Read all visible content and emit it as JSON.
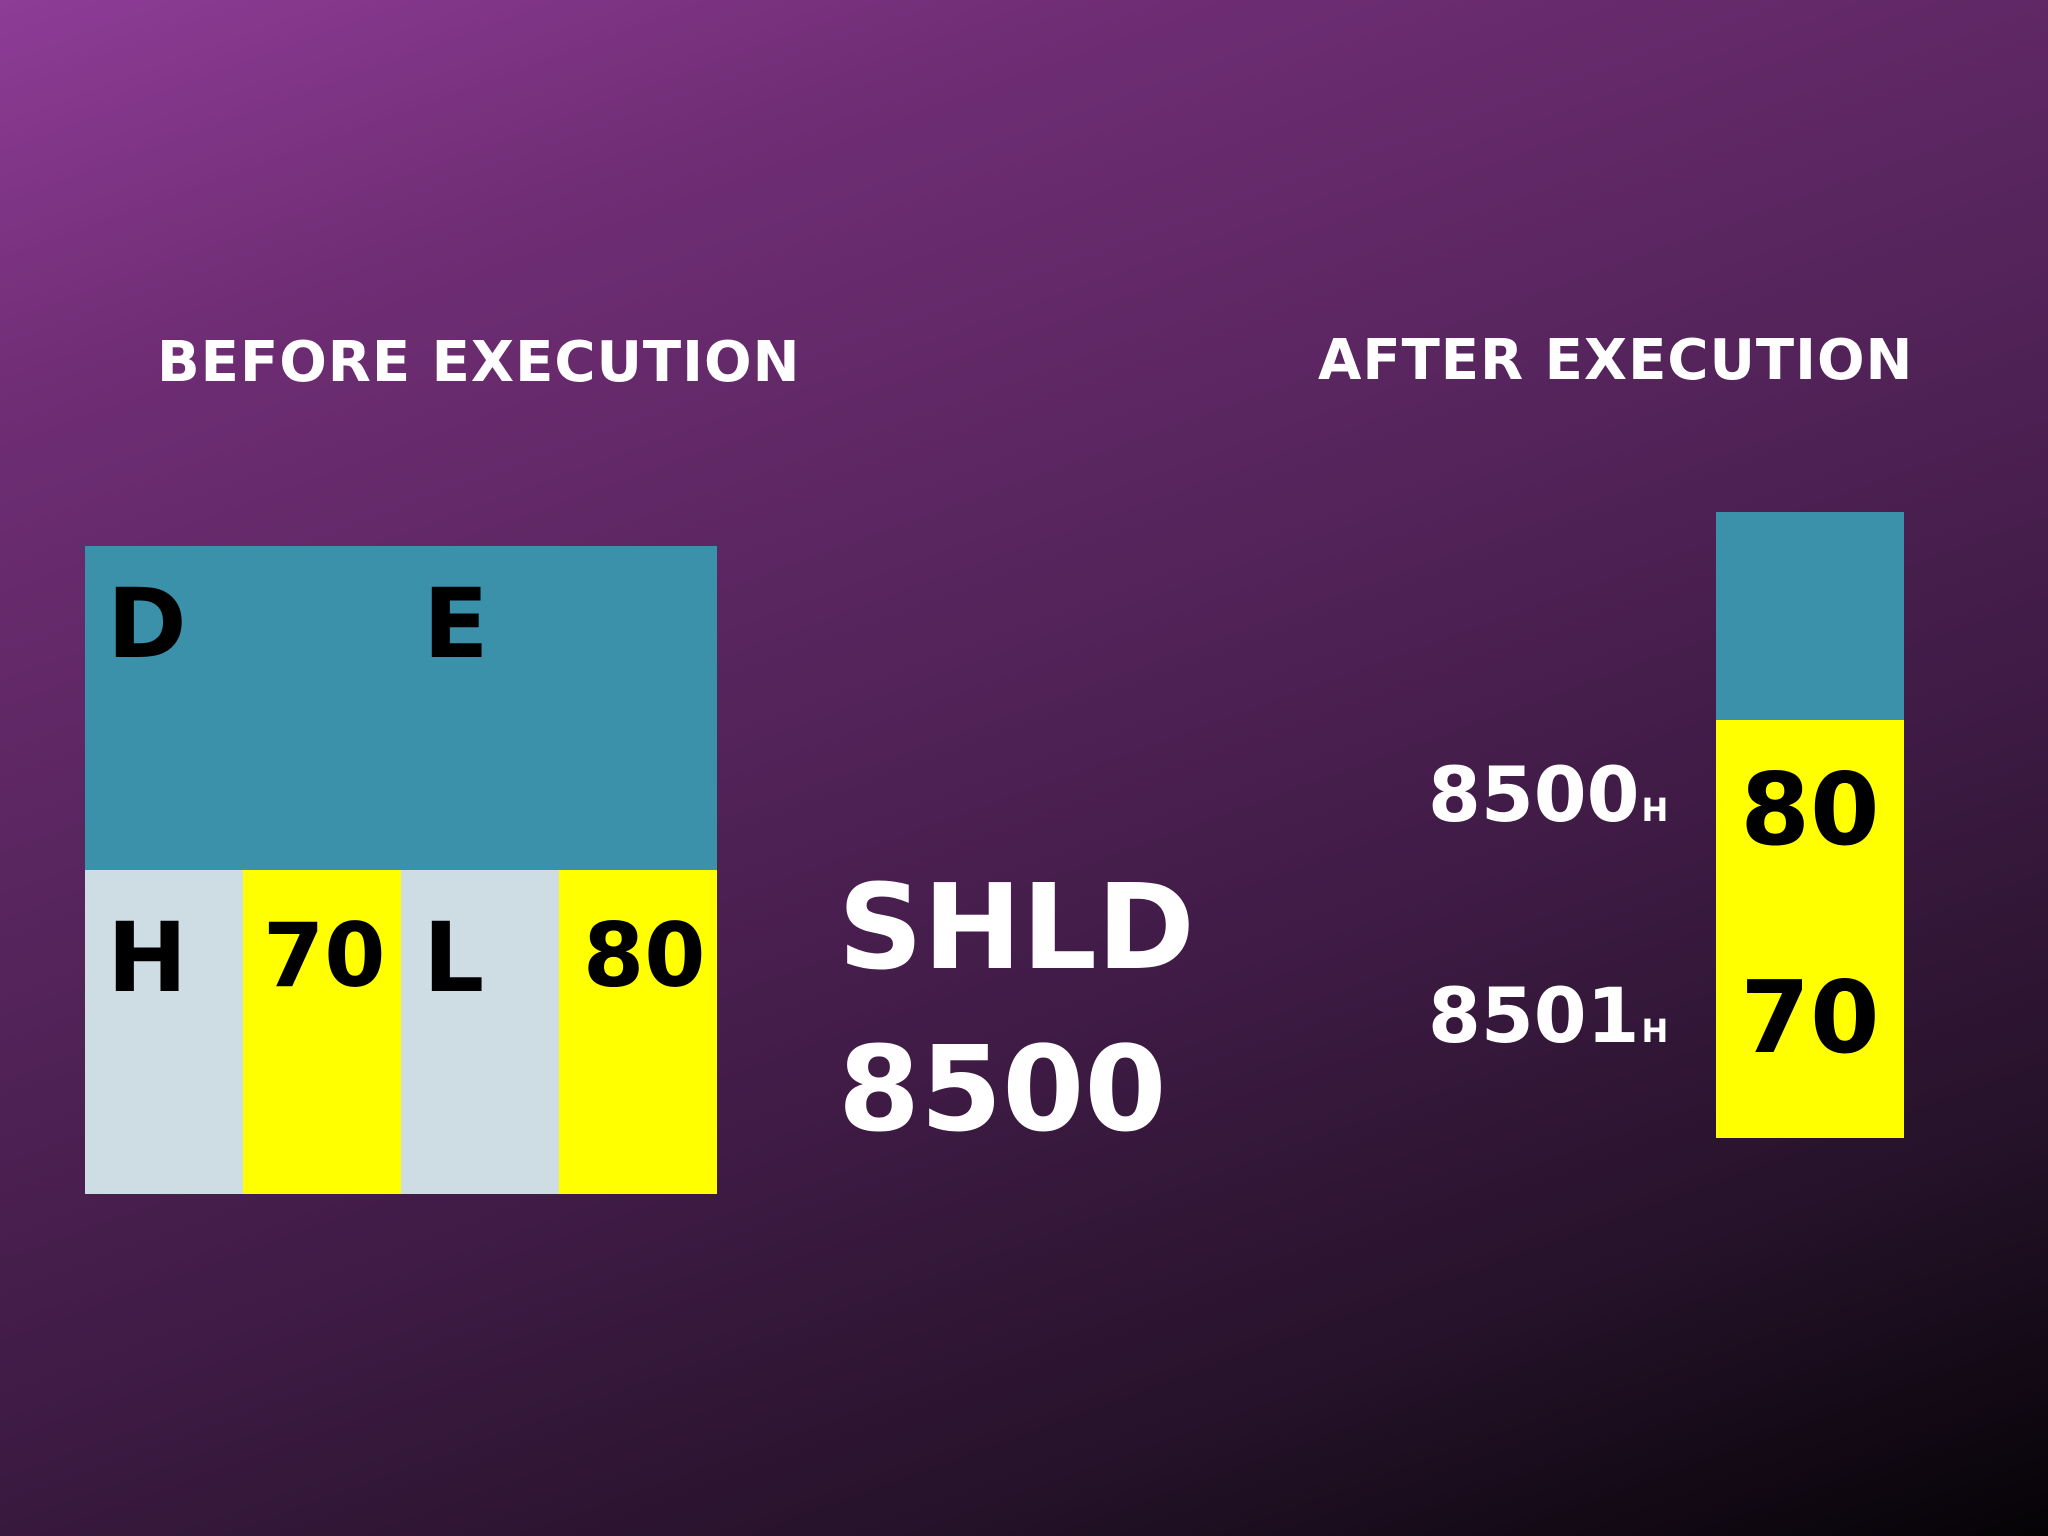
{
  "headings": {
    "before": "BEFORE EXECUTION",
    "after": "AFTER EXECUTION"
  },
  "registers": {
    "pair_de": {
      "high_name": "D",
      "low_name": "E"
    },
    "pair_hl": {
      "high_name": "H",
      "high_value": "70",
      "low_name": "L",
      "low_value": "80"
    }
  },
  "instruction": {
    "mnemonic": "SHLD",
    "operand": "8500"
  },
  "memory": [
    {
      "address": "8500",
      "suffix": "H",
      "value": "80"
    },
    {
      "address": "8501",
      "suffix": "H",
      "value": "70"
    }
  ],
  "colors": {
    "register_pair_de": "#3b91aa",
    "register_name_cell": "#cddde3",
    "register_value_cell": "#ffff00",
    "text_light": "#ffffff",
    "text_dark": "#000000"
  }
}
